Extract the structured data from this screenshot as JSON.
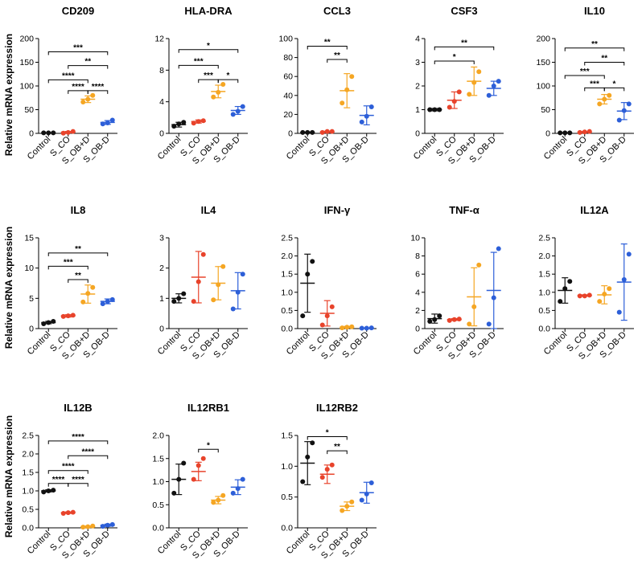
{
  "figure": {
    "y_label": "Relative mRNA expression"
  },
  "colors": {
    "Control": "#111111",
    "S_CO": "#e8432b",
    "S_OB+D": "#f5a623",
    "S_OB-D": "#2d5fd8"
  },
  "chart_data": [
    {
      "type": "scatter",
      "title": "CD209",
      "categories": [
        "Control",
        "S_CO",
        "S_OB+D",
        "S_OB-D"
      ],
      "ylim": [
        0,
        200
      ],
      "yticks": [
        0,
        50,
        100,
        150,
        200
      ],
      "points": [
        [
          1,
          1,
          1
        ],
        [
          0.5,
          2,
          4
        ],
        [
          66,
          72,
          80
        ],
        [
          20,
          22,
          28
        ]
      ],
      "means": [
        1,
        2.5,
        72,
        23
      ],
      "sd": [
        0.5,
        1.5,
        7,
        4
      ],
      "brackets": [
        {
          "from": 1,
          "to": 4,
          "label": "***",
          "y": 172
        },
        {
          "from": 2,
          "to": 4,
          "label": "**",
          "y": 143
        },
        {
          "from": 1,
          "to": 3,
          "label": "****",
          "y": 113
        },
        {
          "from": 2,
          "to": 3,
          "label": "****",
          "y": 90
        },
        {
          "from": 3,
          "to": 4,
          "label": "****",
          "y": 90
        }
      ]
    },
    {
      "type": "scatter",
      "title": "HLA-DRA",
      "categories": [
        "Control",
        "S_CO",
        "S_OB+D",
        "S_OB-D"
      ],
      "ylim": [
        0,
        12
      ],
      "yticks": [
        0,
        4,
        8,
        12
      ],
      "points": [
        [
          0.9,
          1.2,
          1.4
        ],
        [
          1.3,
          1.5,
          1.6
        ],
        [
          4.6,
          5.2,
          6.2
        ],
        [
          2.4,
          2.8,
          3.4
        ]
      ],
      "means": [
        1.1,
        1.5,
        5.3,
        2.9
      ],
      "sd": [
        0.3,
        0.2,
        0.8,
        0.5
      ],
      "brackets": [
        {
          "from": 1,
          "to": 4,
          "label": "*",
          "y": 10.6
        },
        {
          "from": 1,
          "to": 3,
          "label": "***",
          "y": 8.6
        },
        {
          "from": 2,
          "to": 3,
          "label": "***",
          "y": 6.8
        },
        {
          "from": 3,
          "to": 4,
          "label": "*",
          "y": 6.8
        }
      ]
    },
    {
      "type": "scatter",
      "title": "CCL3",
      "categories": [
        "Control",
        "S_CO",
        "S_OB+D",
        "S_OB-D"
      ],
      "ylim": [
        0,
        100
      ],
      "yticks": [
        0,
        20,
        40,
        60,
        80,
        100
      ],
      "points": [
        [
          1,
          1,
          1
        ],
        [
          1,
          2,
          2
        ],
        [
          32,
          46,
          60
        ],
        [
          12,
          18,
          28
        ]
      ],
      "means": [
        1,
        1.7,
        45,
        19
      ],
      "sd": [
        0.5,
        0.6,
        18,
        10
      ],
      "brackets": [
        {
          "from": 1,
          "to": 3,
          "label": "**",
          "y": 92
        },
        {
          "from": 2,
          "to": 3,
          "label": "**",
          "y": 78
        }
      ]
    },
    {
      "type": "scatter",
      "title": "CSF3",
      "categories": [
        "Control",
        "S_CO",
        "S_OB+D",
        "S_OB-D"
      ],
      "ylim": [
        0,
        4
      ],
      "yticks": [
        0,
        1,
        2,
        3,
        4
      ],
      "points": [
        [
          1,
          1,
          1
        ],
        [
          1.1,
          1.35,
          1.75
        ],
        [
          1.65,
          2.15,
          2.6
        ],
        [
          1.6,
          2,
          2.2
        ]
      ],
      "means": [
        1,
        1.4,
        2.2,
        1.9
      ],
      "sd": [
        0.05,
        0.35,
        0.6,
        0.3
      ],
      "brackets": [
        {
          "from": 1,
          "to": 4,
          "label": "**",
          "y": 3.65
        },
        {
          "from": 1,
          "to": 3,
          "label": "*",
          "y": 3.05
        }
      ]
    },
    {
      "type": "scatter",
      "title": "IL10",
      "categories": [
        "Control",
        "S_CO",
        "S_OB+D",
        "S_OB-D"
      ],
      "ylim": [
        0,
        200
      ],
      "yticks": [
        0,
        50,
        100,
        150,
        200
      ],
      "points": [
        [
          1,
          1,
          1
        ],
        [
          2,
          3,
          4
        ],
        [
          62,
          72,
          80
        ],
        [
          28,
          48,
          62
        ]
      ],
      "means": [
        1,
        3,
        72,
        47
      ],
      "sd": [
        0.5,
        1,
        10,
        18
      ],
      "brackets": [
        {
          "from": 1,
          "to": 4,
          "label": "**",
          "y": 180
        },
        {
          "from": 2,
          "to": 4,
          "label": "**",
          "y": 150
        },
        {
          "from": 1,
          "to": 3,
          "label": "***",
          "y": 122
        },
        {
          "from": 2,
          "to": 3,
          "label": "***",
          "y": 96
        },
        {
          "from": 3,
          "to": 4,
          "label": "*",
          "y": 96
        }
      ]
    },
    {
      "type": "scatter",
      "title": "IL8",
      "categories": [
        "Control",
        "S_CO",
        "S_OB+D",
        "S_OB-D"
      ],
      "ylim": [
        0,
        15
      ],
      "yticks": [
        0,
        5,
        10,
        15
      ],
      "points": [
        [
          0.8,
          1,
          1.2
        ],
        [
          2,
          2.1,
          2.2
        ],
        [
          4.4,
          5.8,
          6.8
        ],
        [
          4.1,
          4.5,
          4.8
        ]
      ],
      "means": [
        1,
        2.1,
        5.7,
        4.5
      ],
      "sd": [
        0.2,
        0.2,
        1.5,
        0.4
      ],
      "brackets": [
        {
          "from": 1,
          "to": 4,
          "label": "**",
          "y": 12.5
        },
        {
          "from": 1,
          "to": 3,
          "label": "***",
          "y": 10.3
        },
        {
          "from": 2,
          "to": 3,
          "label": "**",
          "y": 8.1
        }
      ]
    },
    {
      "type": "scatter",
      "title": "IL4",
      "categories": [
        "Control",
        "S_CO",
        "S_OB+D",
        "S_OB-D"
      ],
      "ylim": [
        0,
        3
      ],
      "yticks": [
        0,
        1,
        2,
        3
      ],
      "points": [
        [
          0.9,
          1,
          1.15
        ],
        [
          0.9,
          1.55,
          2.45
        ],
        [
          0.95,
          1.45,
          2.05
        ],
        [
          0.65,
          1.2,
          1.8
        ]
      ],
      "means": [
        1,
        1.7,
        1.5,
        1.25
      ],
      "sd": [
        0.15,
        0.85,
        0.55,
        0.6
      ],
      "brackets": []
    },
    {
      "type": "scatter",
      "title": "IFN-γ",
      "categories": [
        "Control",
        "S_CO",
        "S_OB+D",
        "S_OB-D"
      ],
      "ylim": [
        0,
        2.5
      ],
      "yticks": [
        0,
        0.5,
        1.0,
        1.5,
        2.0,
        2.5
      ],
      "points": [
        [
          0.35,
          1.5,
          1.85
        ],
        [
          0.1,
          0.35,
          0.6
        ],
        [
          0.02,
          0.04,
          0.05
        ],
        [
          0.01,
          0.01,
          0.02
        ]
      ],
      "means": [
        1.25,
        0.42,
        0.04,
        0.01
      ],
      "sd": [
        0.8,
        0.35,
        0.02,
        0.01
      ],
      "brackets": []
    },
    {
      "type": "scatter",
      "title": "TNF-α",
      "categories": [
        "Control",
        "S_CO",
        "S_OB+D",
        "S_OB-D"
      ],
      "ylim": [
        0,
        10
      ],
      "yticks": [
        0,
        2,
        4,
        6,
        8,
        10
      ],
      "points": [
        [
          0.8,
          1,
          1.4
        ],
        [
          0.9,
          1,
          1.05
        ],
        [
          0.5,
          2.4,
          7
        ],
        [
          0.5,
          3.4,
          8.8
        ]
      ],
      "means": [
        1.1,
        1,
        3.5,
        4.2
      ],
      "sd": [
        0.5,
        0.1,
        3.2,
        4.2
      ],
      "brackets": []
    },
    {
      "type": "scatter",
      "title": "IL12A",
      "categories": [
        "Control",
        "S_CO",
        "S_OB+D",
        "S_OB-D"
      ],
      "ylim": [
        0,
        2.5
      ],
      "yticks": [
        0,
        0.5,
        1.0,
        1.5,
        2.0,
        2.5
      ],
      "points": [
        [
          0.75,
          1.1,
          1.3
        ],
        [
          0.9,
          0.9,
          0.92
        ],
        [
          0.75,
          0.95,
          1.1
        ],
        [
          0.45,
          1.35,
          2.05
        ]
      ],
      "means": [
        1.05,
        0.91,
        0.93,
        1.28
      ],
      "sd": [
        0.35,
        0.02,
        0.25,
        1.05
      ],
      "brackets": []
    },
    {
      "type": "scatter",
      "title": "IL12B",
      "categories": [
        "Control",
        "S_CO",
        "S_OB+D",
        "S_OB-D"
      ],
      "ylim": [
        0,
        2.5
      ],
      "yticks": [
        0,
        0.5,
        1.0,
        1.5,
        2.0,
        2.5
      ],
      "points": [
        [
          0.97,
          1.0,
          1.02
        ],
        [
          0.39,
          0.41,
          0.42
        ],
        [
          0.02,
          0.03,
          0.05
        ],
        [
          0.04,
          0.07,
          0.09
        ]
      ],
      "means": [
        1,
        0.41,
        0.03,
        0.07
      ],
      "sd": [
        0.03,
        0.02,
        0.02,
        0.03
      ],
      "brackets": [
        {
          "from": 1,
          "to": 4,
          "label": "****",
          "y": 2.35
        },
        {
          "from": 2,
          "to": 4,
          "label": "****",
          "y": 1.95
        },
        {
          "from": 1,
          "to": 3,
          "label": "****",
          "y": 1.55
        },
        {
          "from": 1,
          "to": 2,
          "label": "****",
          "y": 1.2
        },
        {
          "from": 2,
          "to": 3,
          "label": "****",
          "y": 1.2
        }
      ]
    },
    {
      "type": "scatter",
      "title": "IL12RB1",
      "categories": [
        "Control",
        "S_CO",
        "S_OB+D",
        "S_OB-D"
      ],
      "ylim": [
        0,
        2.0
      ],
      "yticks": [
        0,
        0.5,
        1.0,
        1.5,
        2.0
      ],
      "points": [
        [
          0.75,
          1.05,
          1.4
        ],
        [
          1.05,
          1.35,
          1.5
        ],
        [
          0.55,
          0.6,
          0.7
        ],
        [
          0.75,
          0.85,
          1.05
        ]
      ],
      "means": [
        1.05,
        1.22,
        0.6,
        0.88
      ],
      "sd": [
        0.33,
        0.2,
        0.08,
        0.16
      ],
      "brackets": [
        {
          "from": 2,
          "to": 3,
          "label": "*",
          "y": 1.7
        }
      ]
    },
    {
      "type": "scatter",
      "title": "IL12RB2",
      "categories": [
        "Control",
        "S_CO",
        "S_OB+D",
        "S_OB-D"
      ],
      "ylim": [
        0,
        1.5
      ],
      "yticks": [
        0,
        0.5,
        1.0,
        1.5
      ],
      "points": [
        [
          0.75,
          1.15,
          1.38
        ],
        [
          0.82,
          0.95,
          1.02
        ],
        [
          0.28,
          0.35,
          0.42
        ],
        [
          0.45,
          0.55,
          0.73
        ]
      ],
      "means": [
        1.05,
        0.87,
        0.35,
        0.57
      ],
      "sd": [
        0.35,
        0.15,
        0.07,
        0.17
      ],
      "brackets": [
        {
          "from": 1,
          "to": 3,
          "label": "*",
          "y": 1.48
        },
        {
          "from": 2,
          "to": 3,
          "label": "**",
          "y": 1.25
        }
      ]
    }
  ]
}
